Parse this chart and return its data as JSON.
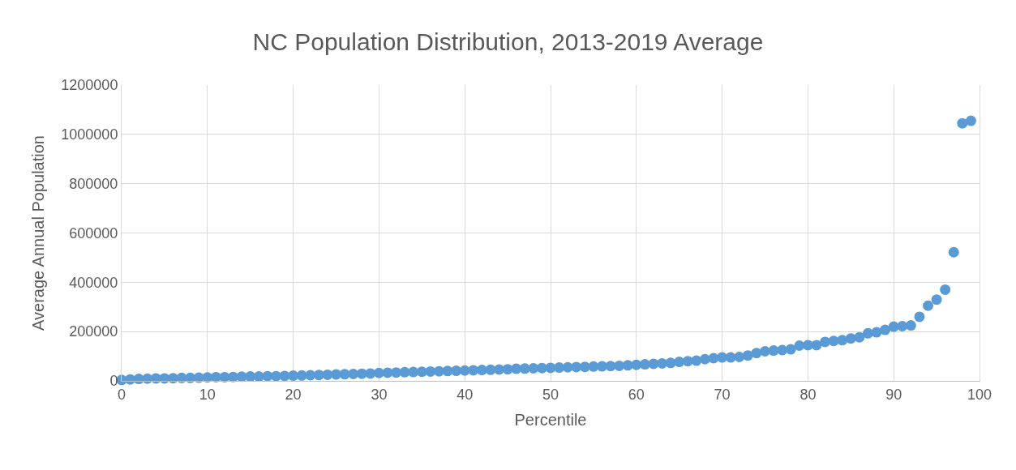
{
  "chart_data": {
    "type": "scatter",
    "title": "NC Population Distribution, 2013-2019 Average",
    "xlabel": "Percentile",
    "ylabel": "Average Annual Population",
    "x": [
      0,
      1,
      2,
      3,
      4,
      5,
      6,
      7,
      8,
      9,
      10,
      11,
      12,
      13,
      14,
      15,
      16,
      17,
      18,
      19,
      20,
      21,
      22,
      23,
      24,
      25,
      26,
      27,
      28,
      29,
      30,
      31,
      32,
      33,
      34,
      35,
      36,
      37,
      38,
      39,
      40,
      41,
      42,
      43,
      44,
      45,
      46,
      47,
      48,
      49,
      50,
      51,
      52,
      53,
      54,
      55,
      56,
      57,
      58,
      59,
      60,
      61,
      62,
      63,
      64,
      65,
      66,
      67,
      68,
      69,
      70,
      71,
      72,
      73,
      74,
      75,
      76,
      77,
      78,
      79,
      80,
      81,
      82,
      83,
      84,
      85,
      86,
      87,
      88,
      89,
      90,
      91,
      92,
      93,
      94,
      95,
      96,
      97,
      98,
      99
    ],
    "series": [
      {
        "color": "#5b9bd5",
        "values": [
          4000,
          6000,
          8000,
          9000,
          10000,
          10000,
          11000,
          12000,
          12000,
          13000,
          14000,
          15000,
          15000,
          16000,
          17000,
          18000,
          18000,
          19000,
          19000,
          20000,
          21000,
          22000,
          23000,
          24000,
          25000,
          26000,
          27000,
          28000,
          29000,
          30000,
          32000,
          33000,
          34000,
          35000,
          36000,
          37000,
          38000,
          39000,
          40000,
          41000,
          42000,
          43000,
          44000,
          45000,
          46000,
          47000,
          49000,
          50000,
          51000,
          52000,
          53000,
          54000,
          55000,
          56000,
          57000,
          58000,
          59000,
          60000,
          61000,
          63000,
          65000,
          67000,
          69000,
          71000,
          73000,
          77000,
          80000,
          82000,
          88000,
          92000,
          95000,
          95000,
          97000,
          103000,
          113000,
          120000,
          123000,
          125000,
          128000,
          143000,
          145000,
          145000,
          158000,
          162000,
          165000,
          172000,
          177000,
          193000,
          197000,
          207000,
          220000,
          222000,
          225000,
          260000,
          305000,
          330000,
          370000,
          522000,
          1045000,
          1055000
        ]
      }
    ],
    "xlim": [
      0,
      100
    ],
    "xticks": [
      0,
      10,
      20,
      30,
      40,
      50,
      60,
      70,
      80,
      90,
      100
    ],
    "ylim": [
      0,
      1200000
    ],
    "yticks": [
      0,
      200000,
      400000,
      600000,
      800000,
      1000000,
      1200000
    ],
    "grid": true,
    "marker": "circle"
  }
}
